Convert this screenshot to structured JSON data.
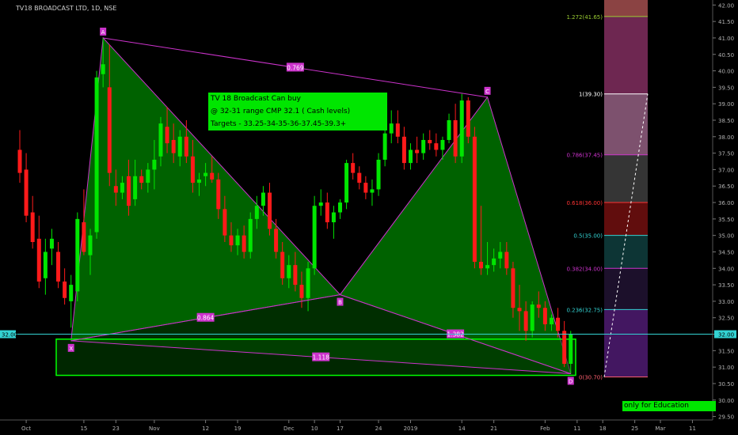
{
  "chart_title": "TV18 BROADCAST LTD, 1D, NSE",
  "notes": [
    "TV 18 Broadcast Can buy",
    "@ 32-31 range CMP 32.1 ( Cash levels)",
    "Targets - 33.25-34-35-36-37.45-39.3+"
  ],
  "edu_label": "only for Education Purpose",
  "chart_data": {
    "type": "candlestick",
    "ylim": [
      29.25,
      42.2
    ],
    "y_ticks": [
      29.5,
      30,
      30.5,
      31,
      31.5,
      32,
      32.5,
      33,
      33.5,
      34,
      34.5,
      35,
      35.5,
      36,
      36.5,
      37,
      37.5,
      38,
      38.5,
      39,
      39.5,
      40,
      40.5,
      41,
      41.5,
      42
    ],
    "x_tick_labels": [
      {
        "label": "Oct",
        "idx": 1
      },
      {
        "label": "15",
        "idx": 10
      },
      {
        "label": "23",
        "idx": 15
      },
      {
        "label": "Nov",
        "idx": 21
      },
      {
        "label": "12",
        "idx": 29
      },
      {
        "label": "19",
        "idx": 34
      },
      {
        "label": "Dec",
        "idx": 42
      },
      {
        "label": "10",
        "idx": 46
      },
      {
        "label": "17",
        "idx": 50
      },
      {
        "label": "24",
        "idx": 56
      },
      {
        "label": "2019",
        "idx": 61
      },
      {
        "label": "14",
        "idx": 69
      },
      {
        "label": "21",
        "idx": 74
      },
      {
        "label": "Feb",
        "idx": 82
      },
      {
        "label": "11",
        "idx": 87
      },
      {
        "label": "18",
        "idx": 91
      },
      {
        "label": "25",
        "idx": 96
      },
      {
        "label": "Mar",
        "idx": 100
      },
      {
        "label": "11",
        "idx": 105
      }
    ],
    "last_price_label": "32.00",
    "candles": [
      [
        37.6,
        38.2,
        36.6,
        36.9
      ],
      [
        37.0,
        37.5,
        35.4,
        35.6
      ],
      [
        35.7,
        36.2,
        34.6,
        34.8
      ],
      [
        34.9,
        35.6,
        33.4,
        33.6
      ],
      [
        33.7,
        34.9,
        33.2,
        34.5
      ],
      [
        34.6,
        35.2,
        34.1,
        34.9
      ],
      [
        34.5,
        34.8,
        33.4,
        33.6
      ],
      [
        33.6,
        34.0,
        32.9,
        33.1
      ],
      [
        33.0,
        33.8,
        32.2,
        33.5
      ],
      [
        33.3,
        35.7,
        33.0,
        35.5
      ],
      [
        35.4,
        36.4,
        34.4,
        34.5
      ],
      [
        34.4,
        35.2,
        33.8,
        35.0
      ],
      [
        35.1,
        40.0,
        34.9,
        39.8
      ],
      [
        39.9,
        41.0,
        39.5,
        40.2
      ],
      [
        39.5,
        40.8,
        36.5,
        36.9
      ],
      [
        36.5,
        37.0,
        35.9,
        36.3
      ],
      [
        36.3,
        36.8,
        36.1,
        36.6
      ],
      [
        36.8,
        37.3,
        35.6,
        35.9
      ],
      [
        36.1,
        37.3,
        35.9,
        36.8
      ],
      [
        36.8,
        37.0,
        36.4,
        36.6
      ],
      [
        36.6,
        37.2,
        36.3,
        37.0
      ],
      [
        37.0,
        37.9,
        36.4,
        37.3
      ],
      [
        37.4,
        38.6,
        37.1,
        38.4
      ],
      [
        38.3,
        38.9,
        37.5,
        37.8
      ],
      [
        37.9,
        38.4,
        37.2,
        37.5
      ],
      [
        37.4,
        38.2,
        37.1,
        38.0
      ],
      [
        38.0,
        38.5,
        37.2,
        37.4
      ],
      [
        37.4,
        37.9,
        36.3,
        36.6
      ],
      [
        36.6,
        36.9,
        36.2,
        36.7
      ],
      [
        36.8,
        37.2,
        36.5,
        36.9
      ],
      [
        36.9,
        37.4,
        36.6,
        36.7
      ],
      [
        36.7,
        36.9,
        35.5,
        35.8
      ],
      [
        35.8,
        36.2,
        34.8,
        35.0
      ],
      [
        35.0,
        35.4,
        34.5,
        34.7
      ],
      [
        34.7,
        35.2,
        34.4,
        35.0
      ],
      [
        35.0,
        35.3,
        34.3,
        34.5
      ],
      [
        34.5,
        35.7,
        34.3,
        35.5
      ],
      [
        35.5,
        36.2,
        35.2,
        35.9
      ],
      [
        35.9,
        36.5,
        35.6,
        36.3
      ],
      [
        36.3,
        36.6,
        35.0,
        35.2
      ],
      [
        35.2,
        35.5,
        34.3,
        34.5
      ],
      [
        34.5,
        34.8,
        33.5,
        33.7
      ],
      [
        33.7,
        34.4,
        33.4,
        34.1
      ],
      [
        34.1,
        34.5,
        33.3,
        33.5
      ],
      [
        33.5,
        33.9,
        32.8,
        33.1
      ],
      [
        33.1,
        34.2,
        32.7,
        34.0
      ],
      [
        34.0,
        36.2,
        33.8,
        35.9
      ],
      [
        35.9,
        36.4,
        35.6,
        36.0
      ],
      [
        36.0,
        36.3,
        35.2,
        35.4
      ],
      [
        35.4,
        35.9,
        34.9,
        35.7
      ],
      [
        35.7,
        36.1,
        35.5,
        36.0
      ],
      [
        36.0,
        37.3,
        35.8,
        37.2
      ],
      [
        37.2,
        37.5,
        36.7,
        36.9
      ],
      [
        36.9,
        37.1,
        36.4,
        36.6
      ],
      [
        36.6,
        36.8,
        36.1,
        36.3
      ],
      [
        36.3,
        36.7,
        35.9,
        36.4
      ],
      [
        36.4,
        37.5,
        36.2,
        37.3
      ],
      [
        37.3,
        38.4,
        37.1,
        38.1
      ],
      [
        38.1,
        38.8,
        37.8,
        38.4
      ],
      [
        38.4,
        38.8,
        37.8,
        38.0
      ],
      [
        38.0,
        38.3,
        37.0,
        37.2
      ],
      [
        37.2,
        37.8,
        37.0,
        37.6
      ],
      [
        37.6,
        38.0,
        37.2,
        37.5
      ],
      [
        37.5,
        38.1,
        37.3,
        37.9
      ],
      [
        37.9,
        38.2,
        37.6,
        37.8
      ],
      [
        37.8,
        38.1,
        37.4,
        37.6
      ],
      [
        37.6,
        38.0,
        37.3,
        37.9
      ],
      [
        37.9,
        38.7,
        37.8,
        38.5
      ],
      [
        38.5,
        39.0,
        37.2,
        37.4
      ],
      [
        37.4,
        39.3,
        37.2,
        39.1
      ],
      [
        39.1,
        39.2,
        37.8,
        38.0
      ],
      [
        38.0,
        38.3,
        34.0,
        34.2
      ],
      [
        34.2,
        35.9,
        33.8,
        34.0
      ],
      [
        34.0,
        34.8,
        33.8,
        34.1
      ],
      [
        34.1,
        34.6,
        33.9,
        34.3
      ],
      [
        34.3,
        34.8,
        34.0,
        34.5
      ],
      [
        34.5,
        34.8,
        33.8,
        34.0
      ],
      [
        34.0,
        34.2,
        32.5,
        32.8
      ],
      [
        32.8,
        33.5,
        32.1,
        32.7
      ],
      [
        32.7,
        33.0,
        31.8,
        32.1
      ],
      [
        32.1,
        33.0,
        31.9,
        32.9
      ],
      [
        32.9,
        33.3,
        32.5,
        32.8
      ],
      [
        32.8,
        33.0,
        32.1,
        32.3
      ],
      [
        32.3,
        32.6,
        32.1,
        32.5
      ],
      [
        32.5,
        32.8,
        31.9,
        32.1
      ],
      [
        32.1,
        32.4,
        31.0,
        31.1
      ],
      [
        31.1,
        32.1,
        30.8,
        32.0
      ]
    ],
    "pattern": {
      "points": [
        {
          "label": "X",
          "idx": 8,
          "price": 31.8
        },
        {
          "label": "A",
          "idx": 13,
          "price": 41.0
        },
        {
          "label": "B",
          "idx": 50,
          "price": 33.2
        },
        {
          "label": "C",
          "idx": 73,
          "price": 39.2
        },
        {
          "label": "D",
          "idx": 86,
          "price": 30.8
        }
      ],
      "ratios": [
        {
          "label": "0.769",
          "between": [
            "A",
            "C"
          ]
        },
        {
          "label": "0.864",
          "between": [
            "X",
            "B"
          ]
        },
        {
          "label": "1.382",
          "between": [
            "B",
            "D"
          ]
        },
        {
          "label": "1.118",
          "between": [
            "X",
            "D"
          ]
        }
      ]
    },
    "fib_levels": [
      {
        "ratio": "0",
        "label": "0(30.70)",
        "price": 30.7,
        "color": "#ff6070"
      },
      {
        "ratio": "0.236",
        "label": "0.236(32.75)",
        "price": 32.75,
        "color": "#33d3d3"
      },
      {
        "ratio": "0.382",
        "label": "0.382(34.00)",
        "price": 34.0,
        "color": "#cc33cc"
      },
      {
        "ratio": "0.5",
        "label": "0.5(35.00)",
        "price": 35.0,
        "color": "#33d3d3"
      },
      {
        "ratio": "0.618",
        "label": "0.618(36.00)",
        "price": 36.0,
        "color": "#ff3333"
      },
      {
        "ratio": "0.786",
        "label": "0.786(37.45)",
        "price": 37.45,
        "color": "#cc33cc"
      },
      {
        "ratio": "1",
        "label": "1(39.30)",
        "price": 39.3,
        "color": "#ffffff"
      },
      {
        "ratio": "1.272",
        "label": "1.272(41.65)",
        "price": 41.65,
        "color": "#9acd32"
      }
    ],
    "fib_band_colors": [
      "#4a1a6b",
      "#1f1230",
      "#0e3b3b",
      "#6b0e0e",
      "#3b3b3b",
      "#8b5a7a",
      "#7a2b5a",
      "#9a4a4a"
    ]
  }
}
